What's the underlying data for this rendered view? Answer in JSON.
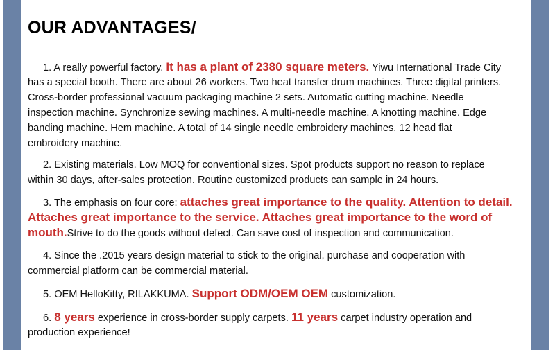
{
  "title": "OUR ADVANTAGES/",
  "colors": {
    "side_bars": "#6a82a6",
    "highlight": "#c8302e"
  },
  "paragraphs": [
    {
      "lines": [
        [
          {
            "text": "1. A really powerful factory. "
          },
          {
            "text": "It has a plant of 2380 square meters.",
            "red": true
          },
          {
            "text": " Yiwu International Trade City"
          }
        ],
        [
          {
            "text": "has a special booth. There are about 26 workers. Two heat transfer drum machines. Three digital printers."
          }
        ],
        [
          {
            "text": "Cross-border professional vacuum packaging machine 2 sets. Automatic cutting machine. Needle"
          }
        ],
        [
          {
            "text": "inspection machine. Synchronize sewing machines. A multi-needle machine. A knotting machine. Edge"
          }
        ],
        [
          {
            "text": "banding machine. Hem machine. A total of 14 single needle embroidery machines. 12 head flat"
          }
        ],
        [
          {
            "text": "embroidery machine."
          }
        ]
      ]
    },
    {
      "lines": [
        [
          {
            "text": "2. Existing materials. Low MOQ for conventional sizes. Spot products support no reason to replace"
          }
        ],
        [
          {
            "text": "within 30 days, after-sales protection. Routine customized products can sample in 24 hours."
          }
        ]
      ]
    },
    {
      "lines": [
        [
          {
            "text": "3. The emphasis on four core: "
          },
          {
            "text": "attaches great importance to the quality. Attention to detail.",
            "red": true
          }
        ],
        [
          {
            "text": "Attaches great importance to the service. Attaches great importance to the word of",
            "red": true
          }
        ],
        [
          {
            "text": "mouth.",
            "red": true
          },
          {
            "text": "Strive to do the goods without defect.  Can save cost of inspection and communication."
          }
        ]
      ]
    },
    {
      "lines": [
        [
          {
            "text": "4. Since the .2015 years design material to stick to the original, purchase and cooperation with"
          }
        ],
        [
          {
            "text": "commercial platform can be commercial material."
          }
        ]
      ]
    },
    {
      "lines": [
        [
          {
            "text": "5. OEM HelloKitty, RILAKKUMA. "
          },
          {
            "text": "Support ODM/OEM OEM",
            "red": true
          },
          {
            "text": " customization."
          }
        ]
      ]
    },
    {
      "lines": [
        [
          {
            "text": "6. "
          },
          {
            "text": "8 years",
            "red": true
          },
          {
            "text": " experience in cross-border supply carpets. "
          },
          {
            "text": "11 years",
            "red": true
          },
          {
            "text": " carpet industry operation and"
          }
        ],
        [
          {
            "text": "production experience!"
          }
        ]
      ]
    }
  ]
}
